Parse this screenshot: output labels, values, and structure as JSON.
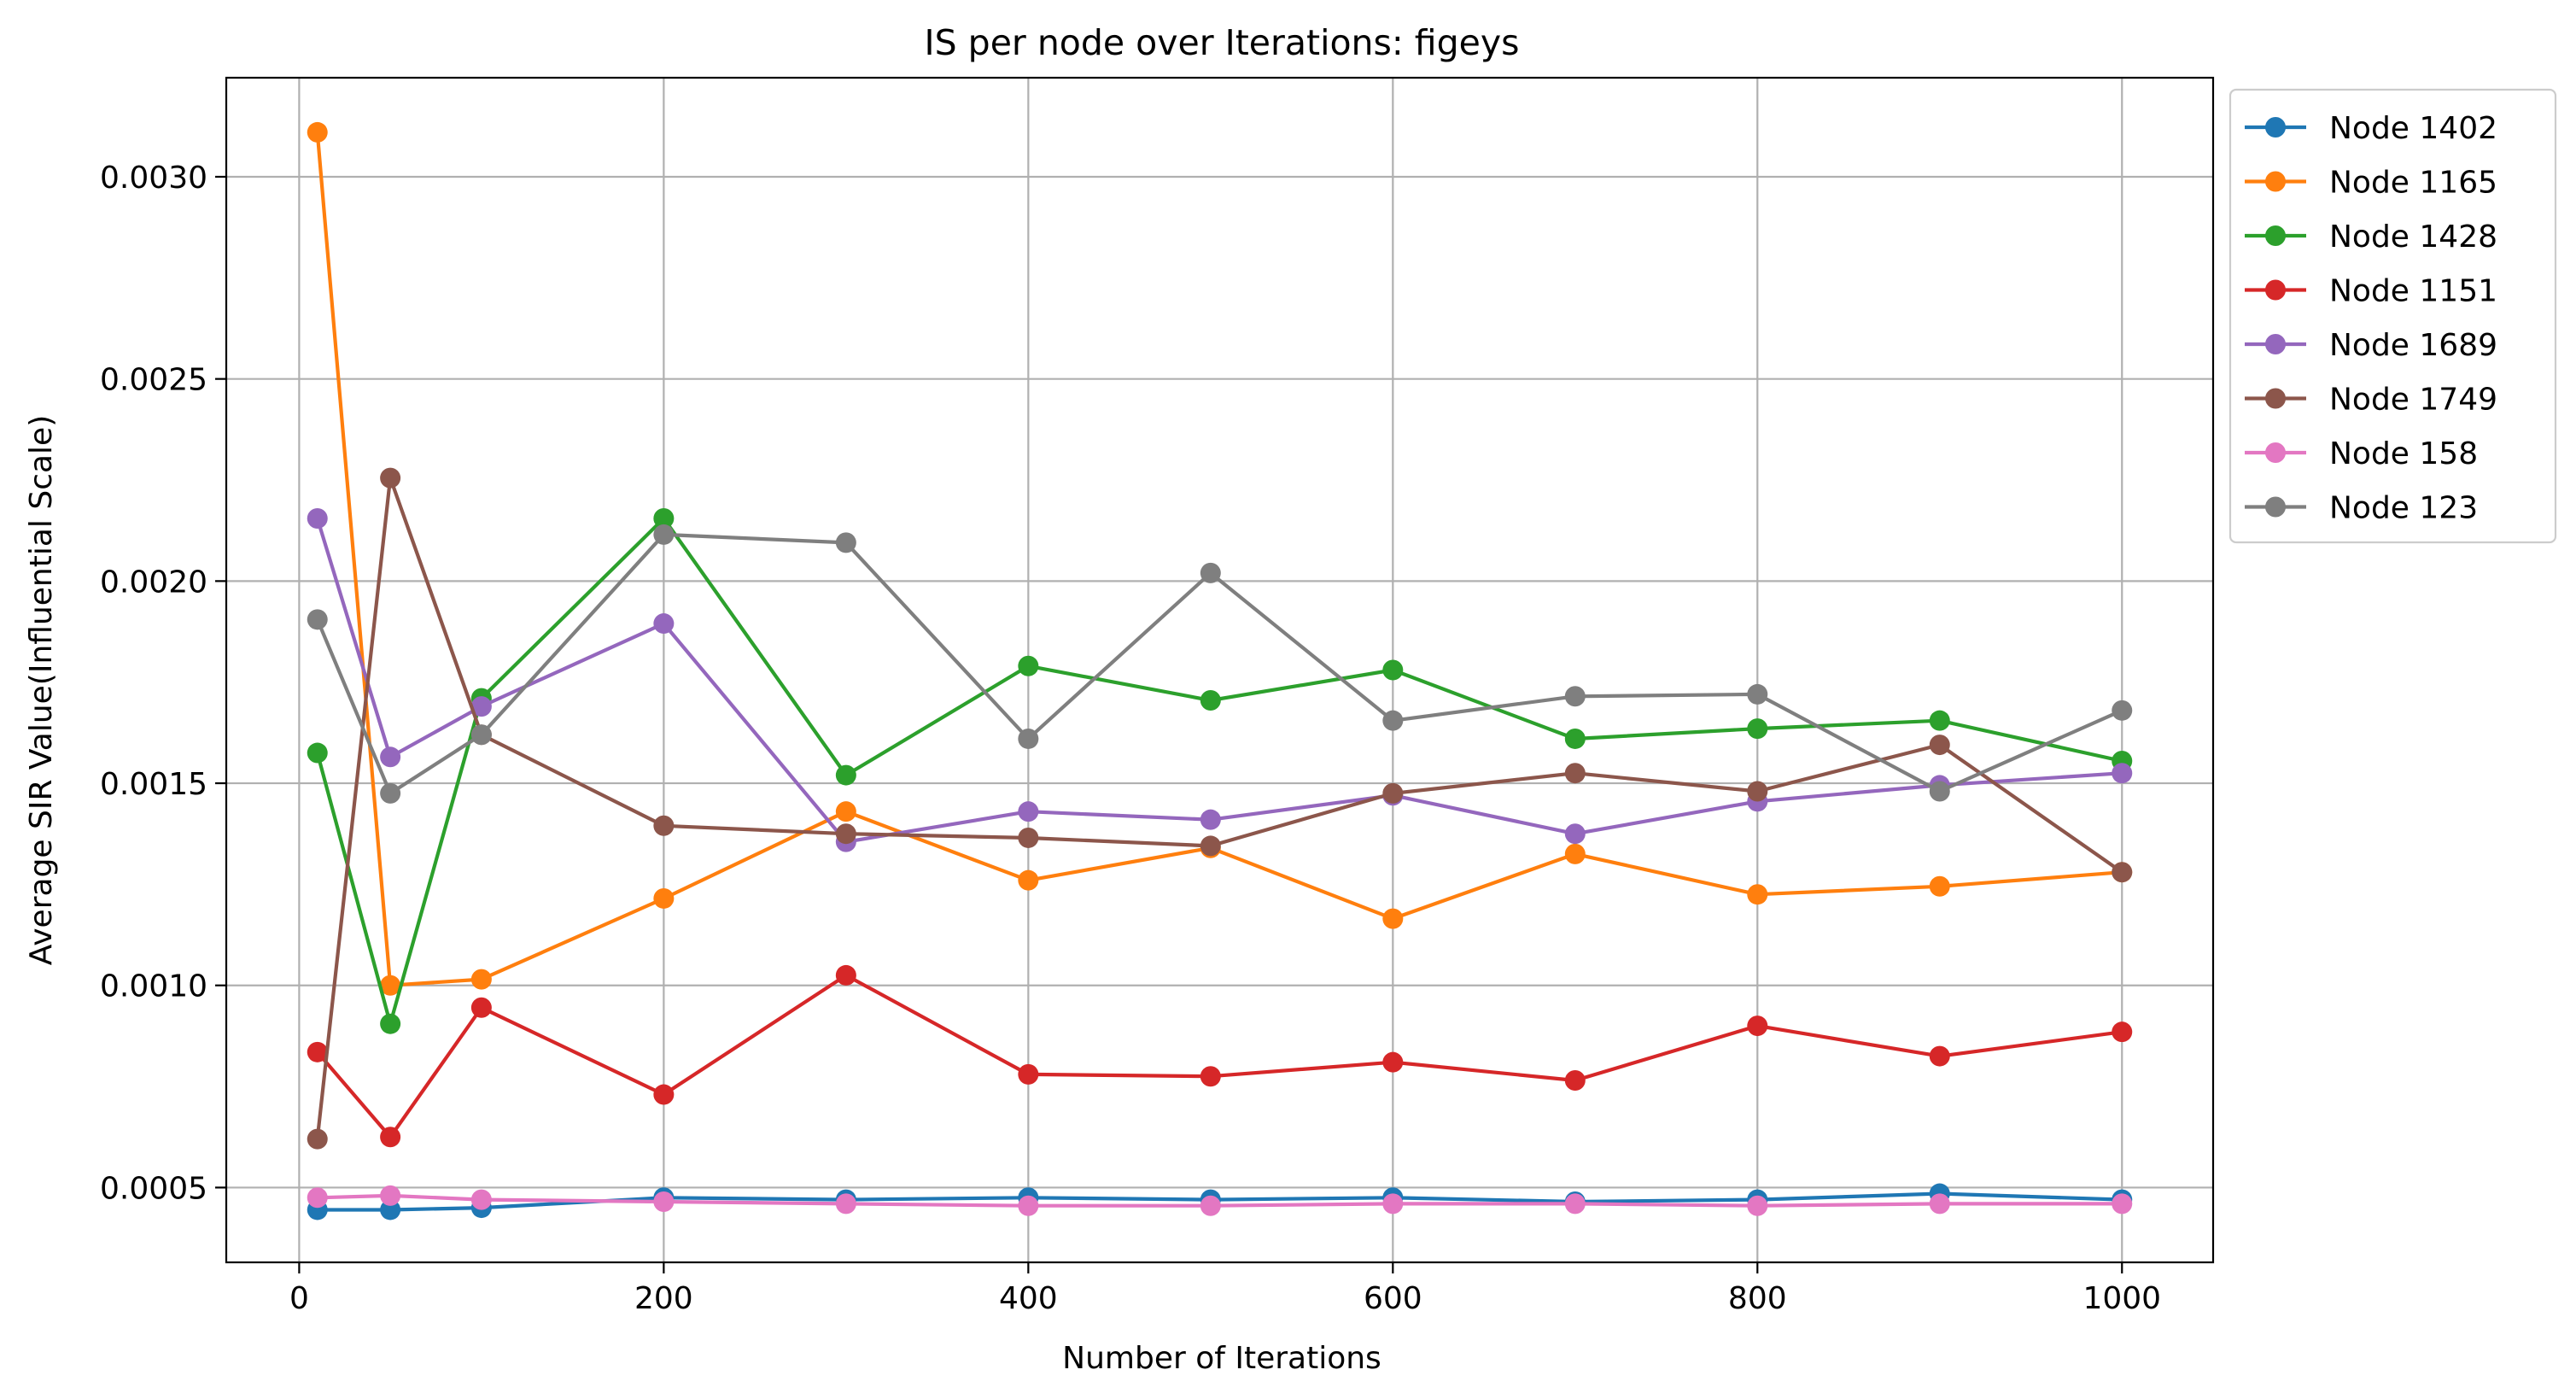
{
  "chart_data": {
    "type": "line",
    "title": "IS per node over Iterations: figeys",
    "xlabel": "Number of Iterations",
    "ylabel": "Average SIR Value(Influential Scale)",
    "xlim": [
      -40,
      1050
    ],
    "ylim": [
      0.000315,
      0.003245
    ],
    "x_ticks": [
      0,
      200,
      400,
      600,
      800,
      1000
    ],
    "x_tick_labels": [
      "0",
      "200",
      "400",
      "600",
      "800",
      "1000"
    ],
    "y_ticks": [
      0.0005,
      0.001,
      0.0015,
      0.002,
      0.0025,
      0.003
    ],
    "y_tick_labels": [
      "0.0005",
      "0.0010",
      "0.0015",
      "0.0020",
      "0.0025",
      "0.0030"
    ],
    "grid": true,
    "legend_position": "outside-top-right",
    "marker": "circle",
    "x": [
      10,
      50,
      100,
      200,
      300,
      400,
      500,
      600,
      700,
      800,
      900,
      1000
    ],
    "series": [
      {
        "name": "Node 1402",
        "color": "#1f77b4",
        "values": [
          0.000445,
          0.000445,
          0.00045,
          0.000475,
          0.00047,
          0.000475,
          0.00047,
          0.000475,
          0.000465,
          0.00047,
          0.000485,
          0.00047
        ]
      },
      {
        "name": "Node 1165",
        "color": "#ff7f0e",
        "values": [
          0.00311,
          0.001,
          0.001015,
          0.001215,
          0.00143,
          0.00126,
          0.00134,
          0.001165,
          0.001325,
          0.001225,
          0.001245,
          0.00128
        ]
      },
      {
        "name": "Node 1428",
        "color": "#2ca02c",
        "values": [
          0.001575,
          0.000905,
          0.00171,
          0.002155,
          0.00152,
          0.00179,
          0.001705,
          0.00178,
          0.00161,
          0.001635,
          0.001655,
          0.001555
        ]
      },
      {
        "name": "Node 1151",
        "color": "#d62728",
        "values": [
          0.000835,
          0.000625,
          0.000945,
          0.00073,
          0.001025,
          0.00078,
          0.000775,
          0.00081,
          0.000765,
          0.0009,
          0.000825,
          0.000885
        ]
      },
      {
        "name": "Node 1689",
        "color": "#9467bd",
        "values": [
          0.002155,
          0.001565,
          0.00169,
          0.001895,
          0.001355,
          0.00143,
          0.00141,
          0.00147,
          0.001375,
          0.001455,
          0.001495,
          0.001525
        ]
      },
      {
        "name": "Node 1749",
        "color": "#8c564b",
        "values": [
          0.00062,
          0.002255,
          0.00162,
          0.001395,
          0.001375,
          0.001365,
          0.001345,
          0.001475,
          0.001525,
          0.00148,
          0.001595,
          0.00128
        ]
      },
      {
        "name": "Node 158",
        "color": "#e377c2",
        "values": [
          0.000475,
          0.00048,
          0.00047,
          0.000465,
          0.00046,
          0.000455,
          0.000455,
          0.00046,
          0.00046,
          0.000455,
          0.00046,
          0.00046
        ]
      },
      {
        "name": "Node 123",
        "color": "#7f7f7f",
        "values": [
          0.001905,
          0.001475,
          0.00162,
          0.002115,
          0.002095,
          0.00161,
          0.00202,
          0.001655,
          0.001715,
          0.00172,
          0.00148,
          0.00168
        ]
      }
    ]
  }
}
